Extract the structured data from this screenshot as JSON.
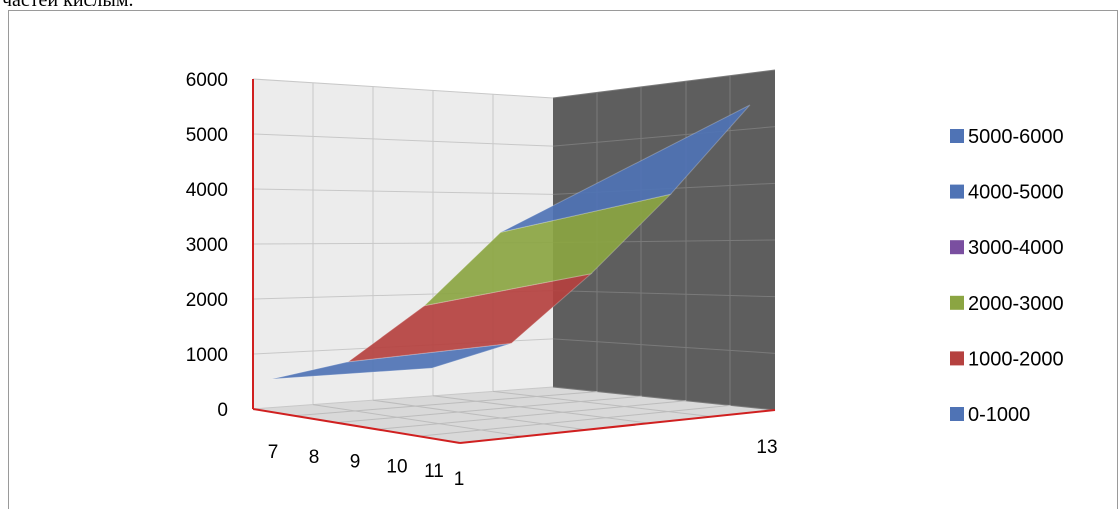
{
  "header": {
    "cropped_text": "частей кислым."
  },
  "chart_data": {
    "type": "surface",
    "title": "",
    "z_ticks": [
      "0",
      "1000",
      "2000",
      "3000",
      "4000",
      "5000",
      "6000"
    ],
    "x_ticks": [
      "7",
      "8",
      "9",
      "10",
      "11"
    ],
    "y_ticks": [
      "1",
      "13"
    ],
    "zlim": [
      0,
      6000
    ],
    "legend_position": "right",
    "bands": [
      {
        "name": "5000-6000",
        "color": "#4F73B5"
      },
      {
        "name": "4000-5000",
        "color": "#4F73B5"
      },
      {
        "name": "3000-4000",
        "color": "#7A4FA0"
      },
      {
        "name": "2000-3000",
        "color": "#8BA542"
      },
      {
        "name": "1000-2000",
        "color": "#B5413F"
      },
      {
        "name": "0-1000",
        "color": "#4F73B5"
      }
    ],
    "surface_profile": {
      "x": [
        7,
        8,
        9,
        10,
        11
      ],
      "front_edge_z": [
        300,
        700,
        2000,
        3700,
        4600
      ],
      "back_edge_z": [
        400,
        900,
        2300,
        3900,
        5700
      ]
    }
  }
}
